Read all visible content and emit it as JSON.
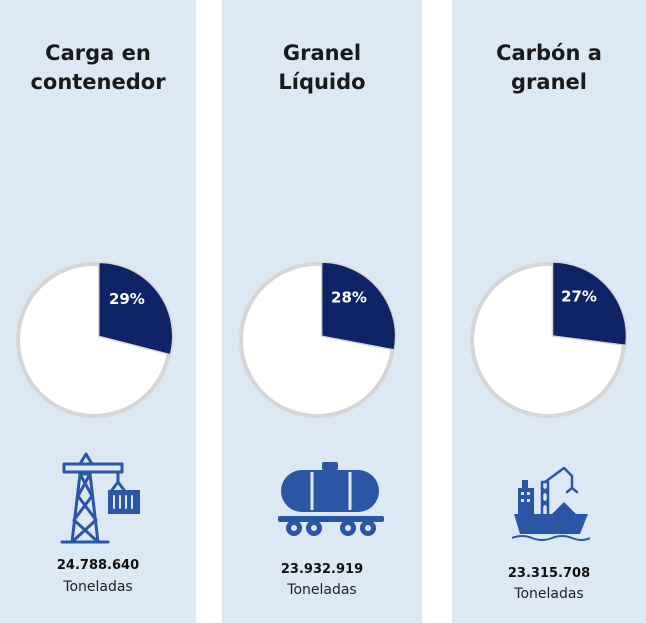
{
  "chart_data": [
    {
      "type": "pie",
      "title_lines": [
        "Carga en",
        "contenedor"
      ],
      "values": [
        29,
        71
      ],
      "data_label": "29%",
      "total": "24.788.640",
      "unit": "Toneladas",
      "icon": "container-crane-icon"
    },
    {
      "type": "pie",
      "title_lines": [
        "Granel",
        "Líquido"
      ],
      "values": [
        28,
        72
      ],
      "data_label": "28%",
      "total": "23.932.919",
      "unit": "Toneladas",
      "icon": "tank-wagon-icon"
    },
    {
      "type": "pie",
      "title_lines": [
        "Carbón a",
        "granel"
      ],
      "values": [
        27,
        73
      ],
      "data_label": "27%",
      "total": "23.315.708",
      "unit": "Toneladas",
      "icon": "bulk-ship-icon"
    }
  ],
  "colors": {
    "panel_background": "#dde8f5",
    "highlight_slice": "#0e2466",
    "rest_slice": "#ffffff",
    "pie_border": "#d6d6d6",
    "icon": "#2b56a6"
  }
}
